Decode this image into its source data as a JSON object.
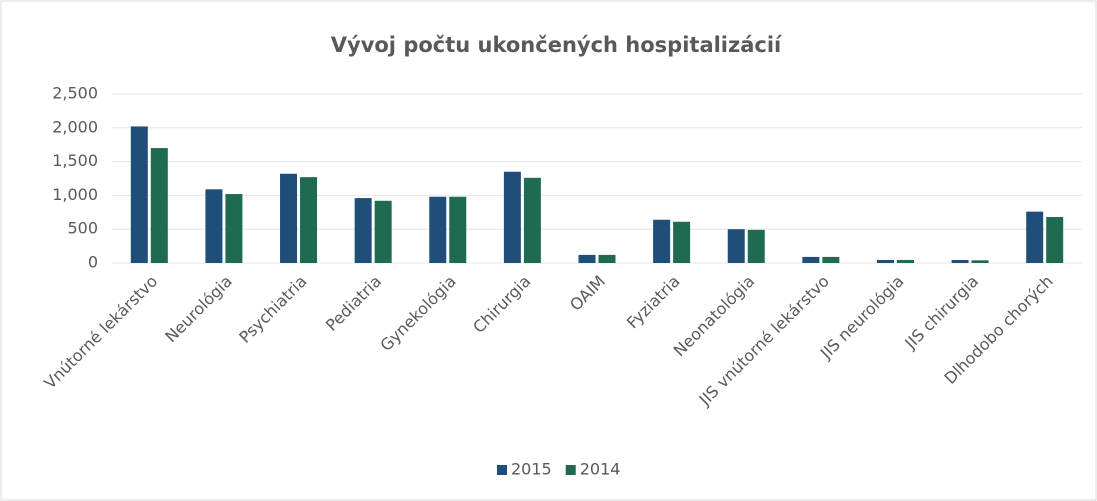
{
  "chart_data": {
    "type": "bar",
    "title": "Vývoj počtu ukončených hospitalizácií",
    "categories": [
      "Vnútorné lekárstvo",
      "Neurológia",
      "Psychiatria",
      "Pediatria",
      "Gynekológia",
      "Chirurgia",
      "OAIM",
      "Fyziatria",
      "Neonatológia",
      "JIS vnútorné lekárstvo",
      "JIS neurológia",
      "JIS chirurgia",
      "Dlhodobo chorých"
    ],
    "series": [
      {
        "name": "2015",
        "color": "#1f4e79",
        "values": [
          2020,
          1090,
          1320,
          960,
          980,
          1350,
          120,
          640,
          500,
          90,
          45,
          45,
          760
        ]
      },
      {
        "name": "2014",
        "color": "#1e6b52",
        "values": [
          1700,
          1020,
          1270,
          920,
          980,
          1260,
          120,
          610,
          490,
          90,
          45,
          40,
          680
        ]
      }
    ],
    "ylim": [
      0,
      2500
    ],
    "yticks": [
      0,
      500,
      {
        "value": 1000,
        "label": "1,000"
      },
      {
        "value": 1500,
        "label": "1,500"
      },
      {
        "value": 2000,
        "label": "2,000"
      },
      {
        "value": 2500,
        "label": "2,500"
      }
    ],
    "grid": true,
    "legend": "bottom"
  }
}
